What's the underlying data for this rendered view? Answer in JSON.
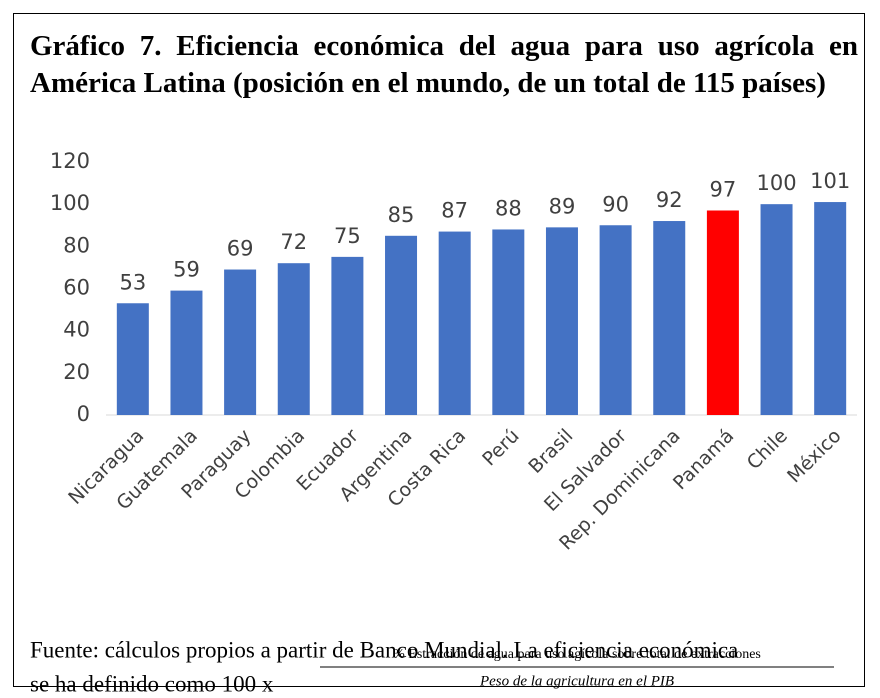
{
  "chart_data": {
    "type": "bar",
    "title": "Gráfico 7. Eficiencia económica del agua para uso agrícola en América Latina (posición en el mundo, de un total de 115 países)",
    "categories": [
      "Nicaragua",
      "Guatemala",
      "Paraguay",
      "Colombia",
      "Ecuador",
      "Argentina",
      "Costa Rica",
      "Perú",
      "Brasil",
      "El Salvador",
      "Rep. Dominicana",
      "Panamá",
      "Chile",
      "México"
    ],
    "values": [
      53,
      59,
      69,
      72,
      75,
      85,
      87,
      88,
      89,
      90,
      92,
      97,
      100,
      101
    ],
    "colors": [
      "#4472c4",
      "#4472c4",
      "#4472c4",
      "#4472c4",
      "#4472c4",
      "#4472c4",
      "#4472c4",
      "#4472c4",
      "#4472c4",
      "#4472c4",
      "#4472c4",
      "#ff0000",
      "#4472c4",
      "#4472c4"
    ],
    "ylim": [
      0,
      120
    ],
    "yticks": [
      0,
      20,
      40,
      60,
      80,
      100,
      120
    ],
    "grid": false,
    "source": "Fuente: cálculos propios a partir de Banco Mundial. La eficiencia económica",
    "formula_prefix": "se ha definido como 100 x",
    "formula_numerator": "% Estracción de agua para uso agícola sobre total de extracciones",
    "formula_denominator": "Peso de la agricultura en el PIB"
  }
}
